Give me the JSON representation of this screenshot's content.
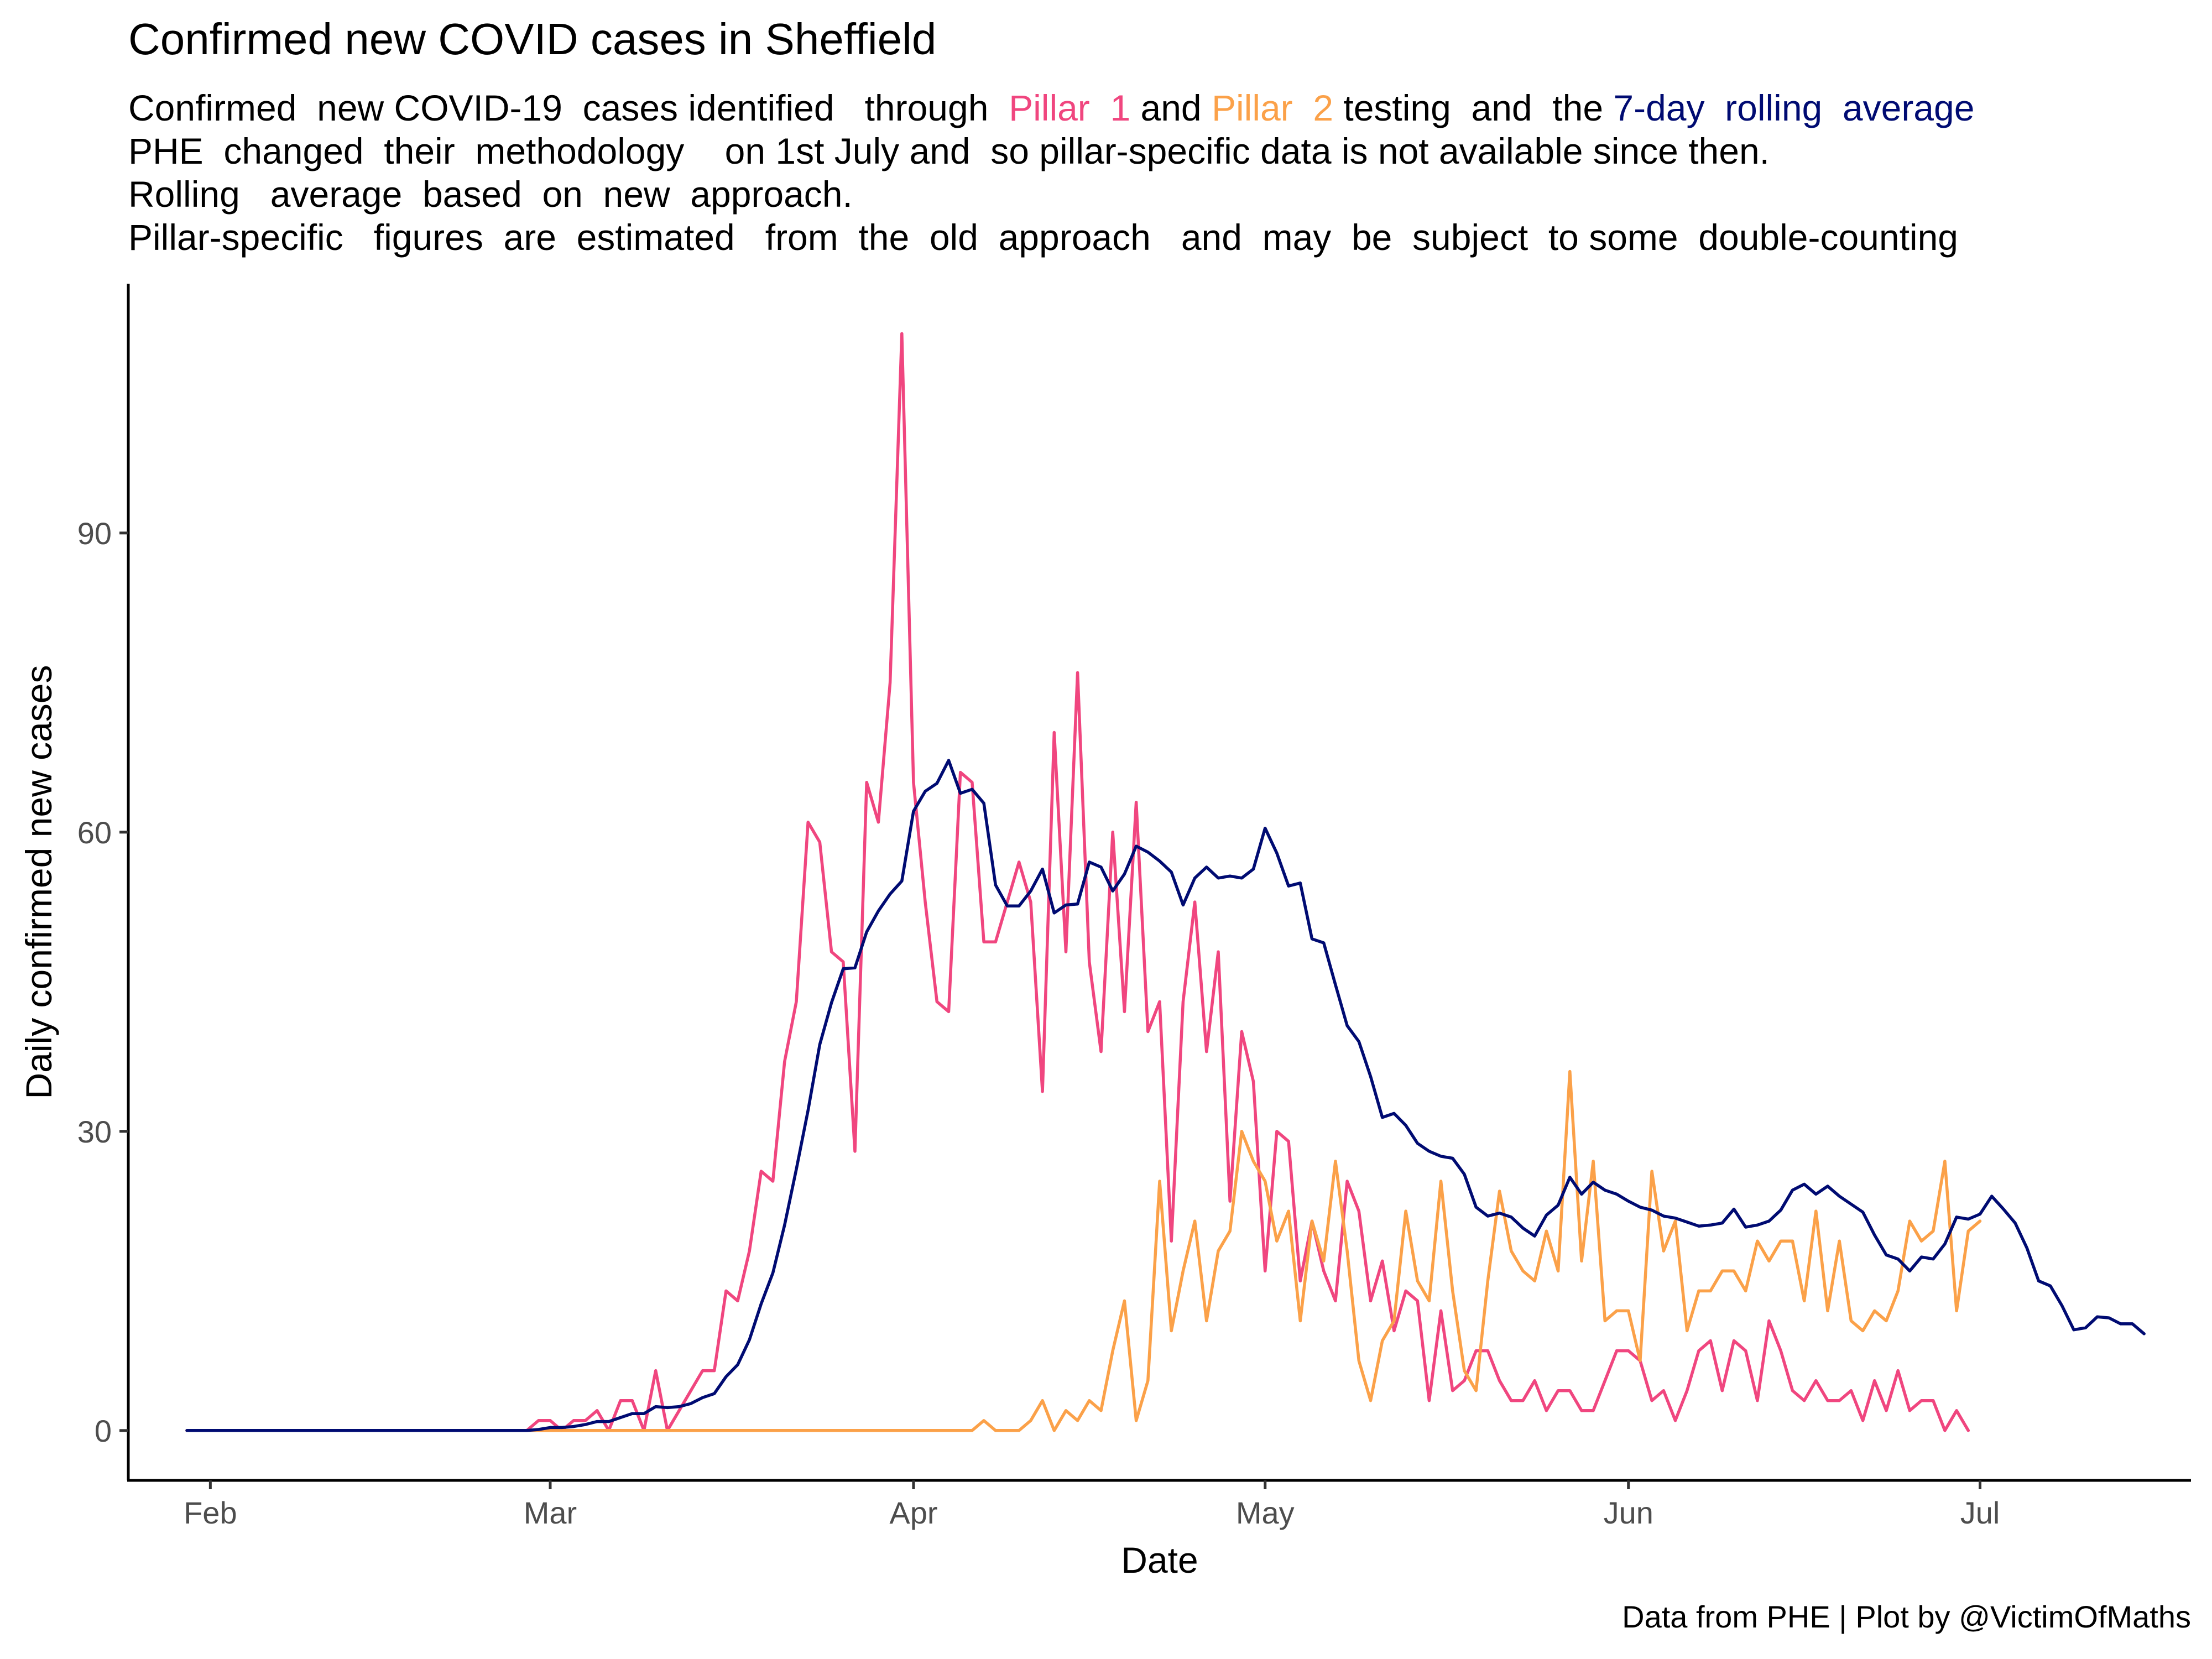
{
  "chart_data": {
    "type": "line",
    "title": "Confirmed new COVID cases in Sheffield",
    "subtitle": {
      "line1": {
        "prefix": "Confirmed  new COVID-19  cases identified   through  ",
        "pillar1": "Pillar  1",
        "and": " and ",
        "pillar2": "Pillar  2",
        "middle": " testing  and  the ",
        "rolling": "7-day  rolling  average"
      },
      "line2": "PHE  changed  their  methodology    on 1st July and  so pillar-specific data is not available since then.",
      "line3": "Rolling   average  based  on  new  approach.",
      "line4": "Pillar-specific   figures  are  estimated   from  the  old  approach   and  may  be  subject  to some  double-counting"
    },
    "xlabel": "Date",
    "ylabel": "Daily confirmed new cases",
    "caption": "Data from PHE | Plot by @VictimOfMaths",
    "x_ticks": [
      {
        "label": "Feb",
        "date": "2020-02-01"
      },
      {
        "label": "Mar",
        "date": "2020-03-01"
      },
      {
        "label": "Apr",
        "date": "2020-04-01"
      },
      {
        "label": "May",
        "date": "2020-05-01"
      },
      {
        "label": "Jun",
        "date": "2020-06-01"
      },
      {
        "label": "Jul",
        "date": "2020-07-01"
      }
    ],
    "y_ticks": [
      0,
      30,
      60,
      90
    ],
    "xlim": [
      "2020-01-25",
      "2020-07-19"
    ],
    "ylim": [
      -5,
      115
    ],
    "grid": false,
    "legend": "none",
    "series": [
      {
        "name": "Pillar 1",
        "color": "#f0467f",
        "start_date": "2020-01-30",
        "end_date": "2020-06-30",
        "values": [
          0,
          0,
          0,
          0,
          0,
          0,
          0,
          0,
          0,
          0,
          0,
          0,
          0,
          0,
          0,
          0,
          0,
          0,
          0,
          0,
          0,
          0,
          0,
          0,
          0,
          0,
          0,
          0,
          0,
          0,
          1,
          1,
          0,
          1,
          1,
          2,
          0,
          3,
          3,
          0,
          6,
          0,
          2,
          4,
          6,
          6,
          14,
          13,
          18,
          26,
          25,
          37,
          43,
          61,
          59,
          48,
          47,
          28,
          65,
          61,
          75,
          110,
          65,
          53,
          43,
          42,
          66,
          65,
          49,
          49,
          53,
          57,
          53,
          34,
          70,
          48,
          76,
          47,
          38,
          60,
          42,
          63,
          40,
          43,
          19,
          43,
          53,
          38,
          48,
          23,
          40,
          35,
          16,
          30,
          29,
          15,
          21,
          16,
          13,
          25,
          22,
          13,
          17,
          10,
          14,
          13,
          3,
          12,
          4,
          5,
          8,
          8,
          5,
          3,
          3,
          5,
          2,
          4,
          4,
          2,
          2,
          5,
          8,
          8,
          7,
          3,
          4,
          1,
          4,
          8,
          9,
          4,
          9,
          8,
          3,
          11,
          8,
          4,
          3,
          5,
          3,
          3,
          4,
          1,
          5,
          2,
          6,
          2,
          3,
          3,
          0,
          2,
          0
        ]
      },
      {
        "name": "Pillar 2",
        "color": "#fba149",
        "start_date": "2020-01-30",
        "end_date": "2020-06-30",
        "values": [
          0,
          0,
          0,
          0,
          0,
          0,
          0,
          0,
          0,
          0,
          0,
          0,
          0,
          0,
          0,
          0,
          0,
          0,
          0,
          0,
          0,
          0,
          0,
          0,
          0,
          0,
          0,
          0,
          0,
          0,
          0,
          0,
          0,
          0,
          0,
          0,
          0,
          0,
          0,
          0,
          0,
          0,
          0,
          0,
          0,
          0,
          0,
          0,
          0,
          0,
          0,
          0,
          0,
          0,
          0,
          0,
          0,
          0,
          0,
          0,
          0,
          0,
          0,
          0,
          0,
          0,
          0,
          0,
          1,
          0,
          0,
          0,
          1,
          3,
          0,
          2,
          1,
          3,
          2,
          8,
          13,
          1,
          5,
          25,
          10,
          16,
          21,
          11,
          18,
          20,
          30,
          27,
          25,
          19,
          22,
          11,
          21,
          17,
          27,
          18,
          7,
          3,
          9,
          11,
          22,
          15,
          13,
          25,
          14,
          6,
          4,
          15,
          24,
          18,
          16,
          15,
          20,
          16,
          36,
          17,
          27,
          11,
          12,
          12,
          7,
          26,
          18,
          21,
          10,
          14,
          14,
          16,
          16,
          14,
          19,
          17,
          19,
          19,
          13,
          22,
          12,
          19,
          11,
          10,
          12,
          11,
          14,
          21,
          19,
          20,
          27,
          12,
          20,
          21
        ]
      },
      {
        "name": "7-day rolling average",
        "color": "#000b72",
        "start_date": "2020-01-30",
        "end_date": "2020-07-14",
        "values": [
          0,
          0,
          0,
          0,
          0,
          0,
          0,
          0,
          0,
          0,
          0,
          0,
          0,
          0,
          0,
          0,
          0,
          0,
          0,
          0,
          0,
          0,
          0,
          0,
          0,
          0,
          0,
          0,
          0,
          0,
          0.1,
          0.3,
          0.3,
          0.4,
          0.6,
          0.9,
          0.9,
          1.3,
          1.7,
          1.7,
          2.4,
          2.3,
          2.4,
          2.7,
          3.3,
          3.7,
          5.4,
          6.6,
          9.1,
          12.7,
          15.8,
          20.6,
          26.2,
          32.1,
          38.7,
          42.9,
          46.3,
          46.4,
          50,
          52.1,
          53.8,
          55.1,
          62.1,
          64.1,
          64.9,
          67.2,
          63.9,
          64.3,
          62.9,
          54.7,
          52.6,
          52.6,
          54.1,
          56.3,
          51.9,
          52.7,
          52.8,
          57,
          56.5,
          54.1,
          55.8,
          58.6,
          58,
          57.1,
          56,
          52.7,
          55.4,
          56.5,
          55.4,
          55.6,
          55.4,
          56.3,
          60.4,
          57.9,
          54.6,
          54.9,
          49.3,
          48.9,
          44.7,
          40.6,
          39,
          35.5,
          31.4,
          31.8,
          30.6,
          28.8,
          28,
          27.5,
          27.3,
          25.7,
          22.4,
          21.5,
          21.8,
          21.4,
          20.3,
          19.5,
          21.6,
          22.6,
          25.4,
          23.7,
          24.9,
          24.1,
          23.7,
          23,
          22.4,
          22.1,
          21.5,
          21.3,
          20.9,
          20.5,
          20.6,
          20.8,
          22.2,
          20.4,
          20.6,
          21,
          22.1,
          24.1,
          24.7,
          23.7,
          24.5,
          23.5,
          22.7,
          21.9,
          19.6,
          17.6,
          17.2,
          16,
          17.4,
          17.2,
          18.7,
          21.4,
          21.2,
          21.7,
          23.5,
          22.2,
          20.8,
          18.3,
          15,
          14.5,
          12.5,
          10.1,
          10.3,
          11.4,
          11.3,
          10.7,
          10.7,
          9.7
        ]
      }
    ]
  }
}
